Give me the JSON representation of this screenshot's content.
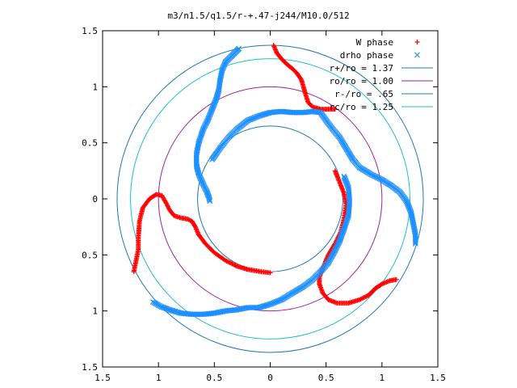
{
  "chart_data": {
    "type": "scatter",
    "title": "m3/n1.5/q1.5/r-+.47-j244/M10.0/512",
    "xlim": [
      -1.5,
      1.5
    ],
    "ylim": [
      -1.5,
      1.5
    ],
    "xticks": [
      -1.5,
      -1,
      -0.5,
      0,
      0.5,
      1,
      1.5
    ],
    "yticks": [
      -1.5,
      -1,
      -0.5,
      0,
      0.5,
      1,
      1.5
    ],
    "xtick_labels": [
      "1.5",
      "1",
      "0.5",
      "0",
      "0.5",
      "1",
      "1.5"
    ],
    "ytick_labels": [
      "1.5",
      "1",
      "0.5",
      "0",
      "0.5",
      "1",
      "1.5"
    ],
    "grid": false,
    "legend_position": "top-right",
    "series": [
      {
        "name": "W phase",
        "marker": "+",
        "color": "#ff0000",
        "segments": [
          [
            [
              0.03,
              1.37
            ],
            [
              0.06,
              1.3
            ],
            [
              0.1,
              1.25
            ],
            [
              0.15,
              1.2
            ],
            [
              0.2,
              1.16
            ],
            [
              0.24,
              1.12
            ],
            [
              0.28,
              1.06
            ],
            [
              0.3,
              0.99
            ],
            [
              0.32,
              0.92
            ],
            [
              0.34,
              0.86
            ],
            [
              0.38,
              0.82
            ],
            [
              0.45,
              0.8
            ],
            [
              0.52,
              0.8
            ],
            [
              0.58,
              0.8
            ]
          ],
          [
            [
              -1.22,
              -0.65
            ],
            [
              -1.2,
              -0.55
            ],
            [
              -1.18,
              -0.45
            ],
            [
              -1.18,
              -0.35
            ],
            [
              -1.17,
              -0.2
            ],
            [
              -1.14,
              -0.08
            ],
            [
              -1.08,
              0.0
            ],
            [
              -1.02,
              0.04
            ],
            [
              -0.97,
              0.03
            ],
            [
              -0.93,
              -0.04
            ],
            [
              -0.9,
              -0.1
            ],
            [
              -0.86,
              -0.15
            ],
            [
              -0.8,
              -0.17
            ],
            [
              -0.74,
              -0.18
            ],
            [
              -0.7,
              -0.2
            ],
            [
              -0.67,
              -0.25
            ],
            [
              -0.64,
              -0.32
            ],
            [
              -0.58,
              -0.4
            ],
            [
              -0.5,
              -0.48
            ],
            [
              -0.4,
              -0.55
            ],
            [
              -0.3,
              -0.6
            ],
            [
              -0.2,
              -0.63
            ],
            [
              -0.08,
              -0.65
            ],
            [
              0.0,
              -0.66
            ]
          ],
          [
            [
              1.13,
              -0.72
            ],
            [
              1.07,
              -0.73
            ],
            [
              1.0,
              -0.76
            ],
            [
              0.94,
              -0.8
            ],
            [
              0.88,
              -0.86
            ],
            [
              0.8,
              -0.9
            ],
            [
              0.7,
              -0.93
            ],
            [
              0.6,
              -0.93
            ],
            [
              0.52,
              -0.9
            ],
            [
              0.47,
              -0.84
            ],
            [
              0.44,
              -0.76
            ],
            [
              0.44,
              -0.7
            ],
            [
              0.47,
              -0.62
            ],
            [
              0.52,
              -0.5
            ],
            [
              0.58,
              -0.4
            ],
            [
              0.63,
              -0.3
            ],
            [
              0.66,
              -0.18
            ],
            [
              0.68,
              -0.05
            ],
            [
              0.66,
              0.05
            ],
            [
              0.62,
              0.15
            ],
            [
              0.58,
              0.25
            ]
          ]
        ]
      },
      {
        "name": "drho phase",
        "marker": "x",
        "color": "#1e90ff",
        "segments": [
          [
            [
              -0.28,
              1.34
            ],
            [
              -0.3,
              1.32
            ],
            [
              -0.35,
              1.27
            ],
            [
              -0.4,
              1.22
            ],
            [
              -0.43,
              1.15
            ],
            [
              -0.45,
              1.05
            ],
            [
              -0.46,
              0.97
            ],
            [
              -0.48,
              0.9
            ],
            [
              -0.52,
              0.8
            ],
            [
              -0.56,
              0.7
            ],
            [
              -0.6,
              0.62
            ],
            [
              -0.64,
              0.5
            ],
            [
              -0.66,
              0.4
            ],
            [
              -0.66,
              0.3
            ],
            [
              -0.64,
              0.22
            ],
            [
              -0.6,
              0.13
            ],
            [
              -0.57,
              0.07
            ],
            [
              -0.55,
              0.02
            ],
            [
              -0.54,
              -0.02
            ]
          ],
          [
            [
              -0.52,
              0.35
            ],
            [
              -0.45,
              0.45
            ],
            [
              -0.38,
              0.54
            ],
            [
              -0.3,
              0.62
            ],
            [
              -0.2,
              0.7
            ],
            [
              -0.1,
              0.74
            ],
            [
              0.0,
              0.77
            ],
            [
              0.1,
              0.78
            ],
            [
              0.2,
              0.77
            ],
            [
              0.3,
              0.77
            ],
            [
              0.38,
              0.78
            ],
            [
              0.45,
              0.77
            ],
            [
              0.5,
              0.7
            ],
            [
              0.56,
              0.62
            ],
            [
              0.62,
              0.55
            ],
            [
              0.68,
              0.45
            ],
            [
              0.74,
              0.35
            ],
            [
              0.8,
              0.28
            ],
            [
              0.9,
              0.22
            ],
            [
              1.0,
              0.17
            ],
            [
              1.08,
              0.12
            ],
            [
              1.16,
              0.06
            ],
            [
              1.22,
              -0.02
            ],
            [
              1.26,
              -0.12
            ],
            [
              1.28,
              -0.22
            ],
            [
              1.3,
              -0.32
            ],
            [
              1.3,
              -0.4
            ]
          ],
          [
            [
              -1.05,
              -0.92
            ],
            [
              -0.98,
              -0.96
            ],
            [
              -0.9,
              -0.99
            ],
            [
              -0.8,
              -1.02
            ],
            [
              -0.7,
              -1.03
            ],
            [
              -0.6,
              -1.03
            ],
            [
              -0.5,
              -1.02
            ],
            [
              -0.4,
              -1.0
            ],
            [
              -0.3,
              -0.99
            ],
            [
              -0.2,
              -0.97
            ],
            [
              -0.1,
              -0.97
            ],
            [
              0.0,
              -0.94
            ],
            [
              0.1,
              -0.9
            ],
            [
              0.2,
              -0.84
            ],
            [
              0.3,
              -0.78
            ],
            [
              0.38,
              -0.72
            ],
            [
              0.45,
              -0.65
            ],
            [
              0.52,
              -0.57
            ],
            [
              0.57,
              -0.48
            ],
            [
              0.62,
              -0.38
            ],
            [
              0.66,
              -0.27
            ],
            [
              0.7,
              -0.15
            ],
            [
              0.71,
              -0.02
            ],
            [
              0.7,
              0.1
            ],
            [
              0.66,
              0.2
            ]
          ]
        ]
      }
    ],
    "circles": [
      {
        "label": "r+/ro = 1.37",
        "r": 1.37,
        "color": "#1f77b4"
      },
      {
        "label": "ro/ro = 1.00",
        "r": 1.0,
        "color": "#a020a0"
      },
      {
        "label": "r-/ro = .65",
        "r": 0.65,
        "color": "#1f77b4"
      },
      {
        "label": "rc/ro = 1.25",
        "r": 1.25,
        "color": "#20c0c0"
      }
    ]
  }
}
